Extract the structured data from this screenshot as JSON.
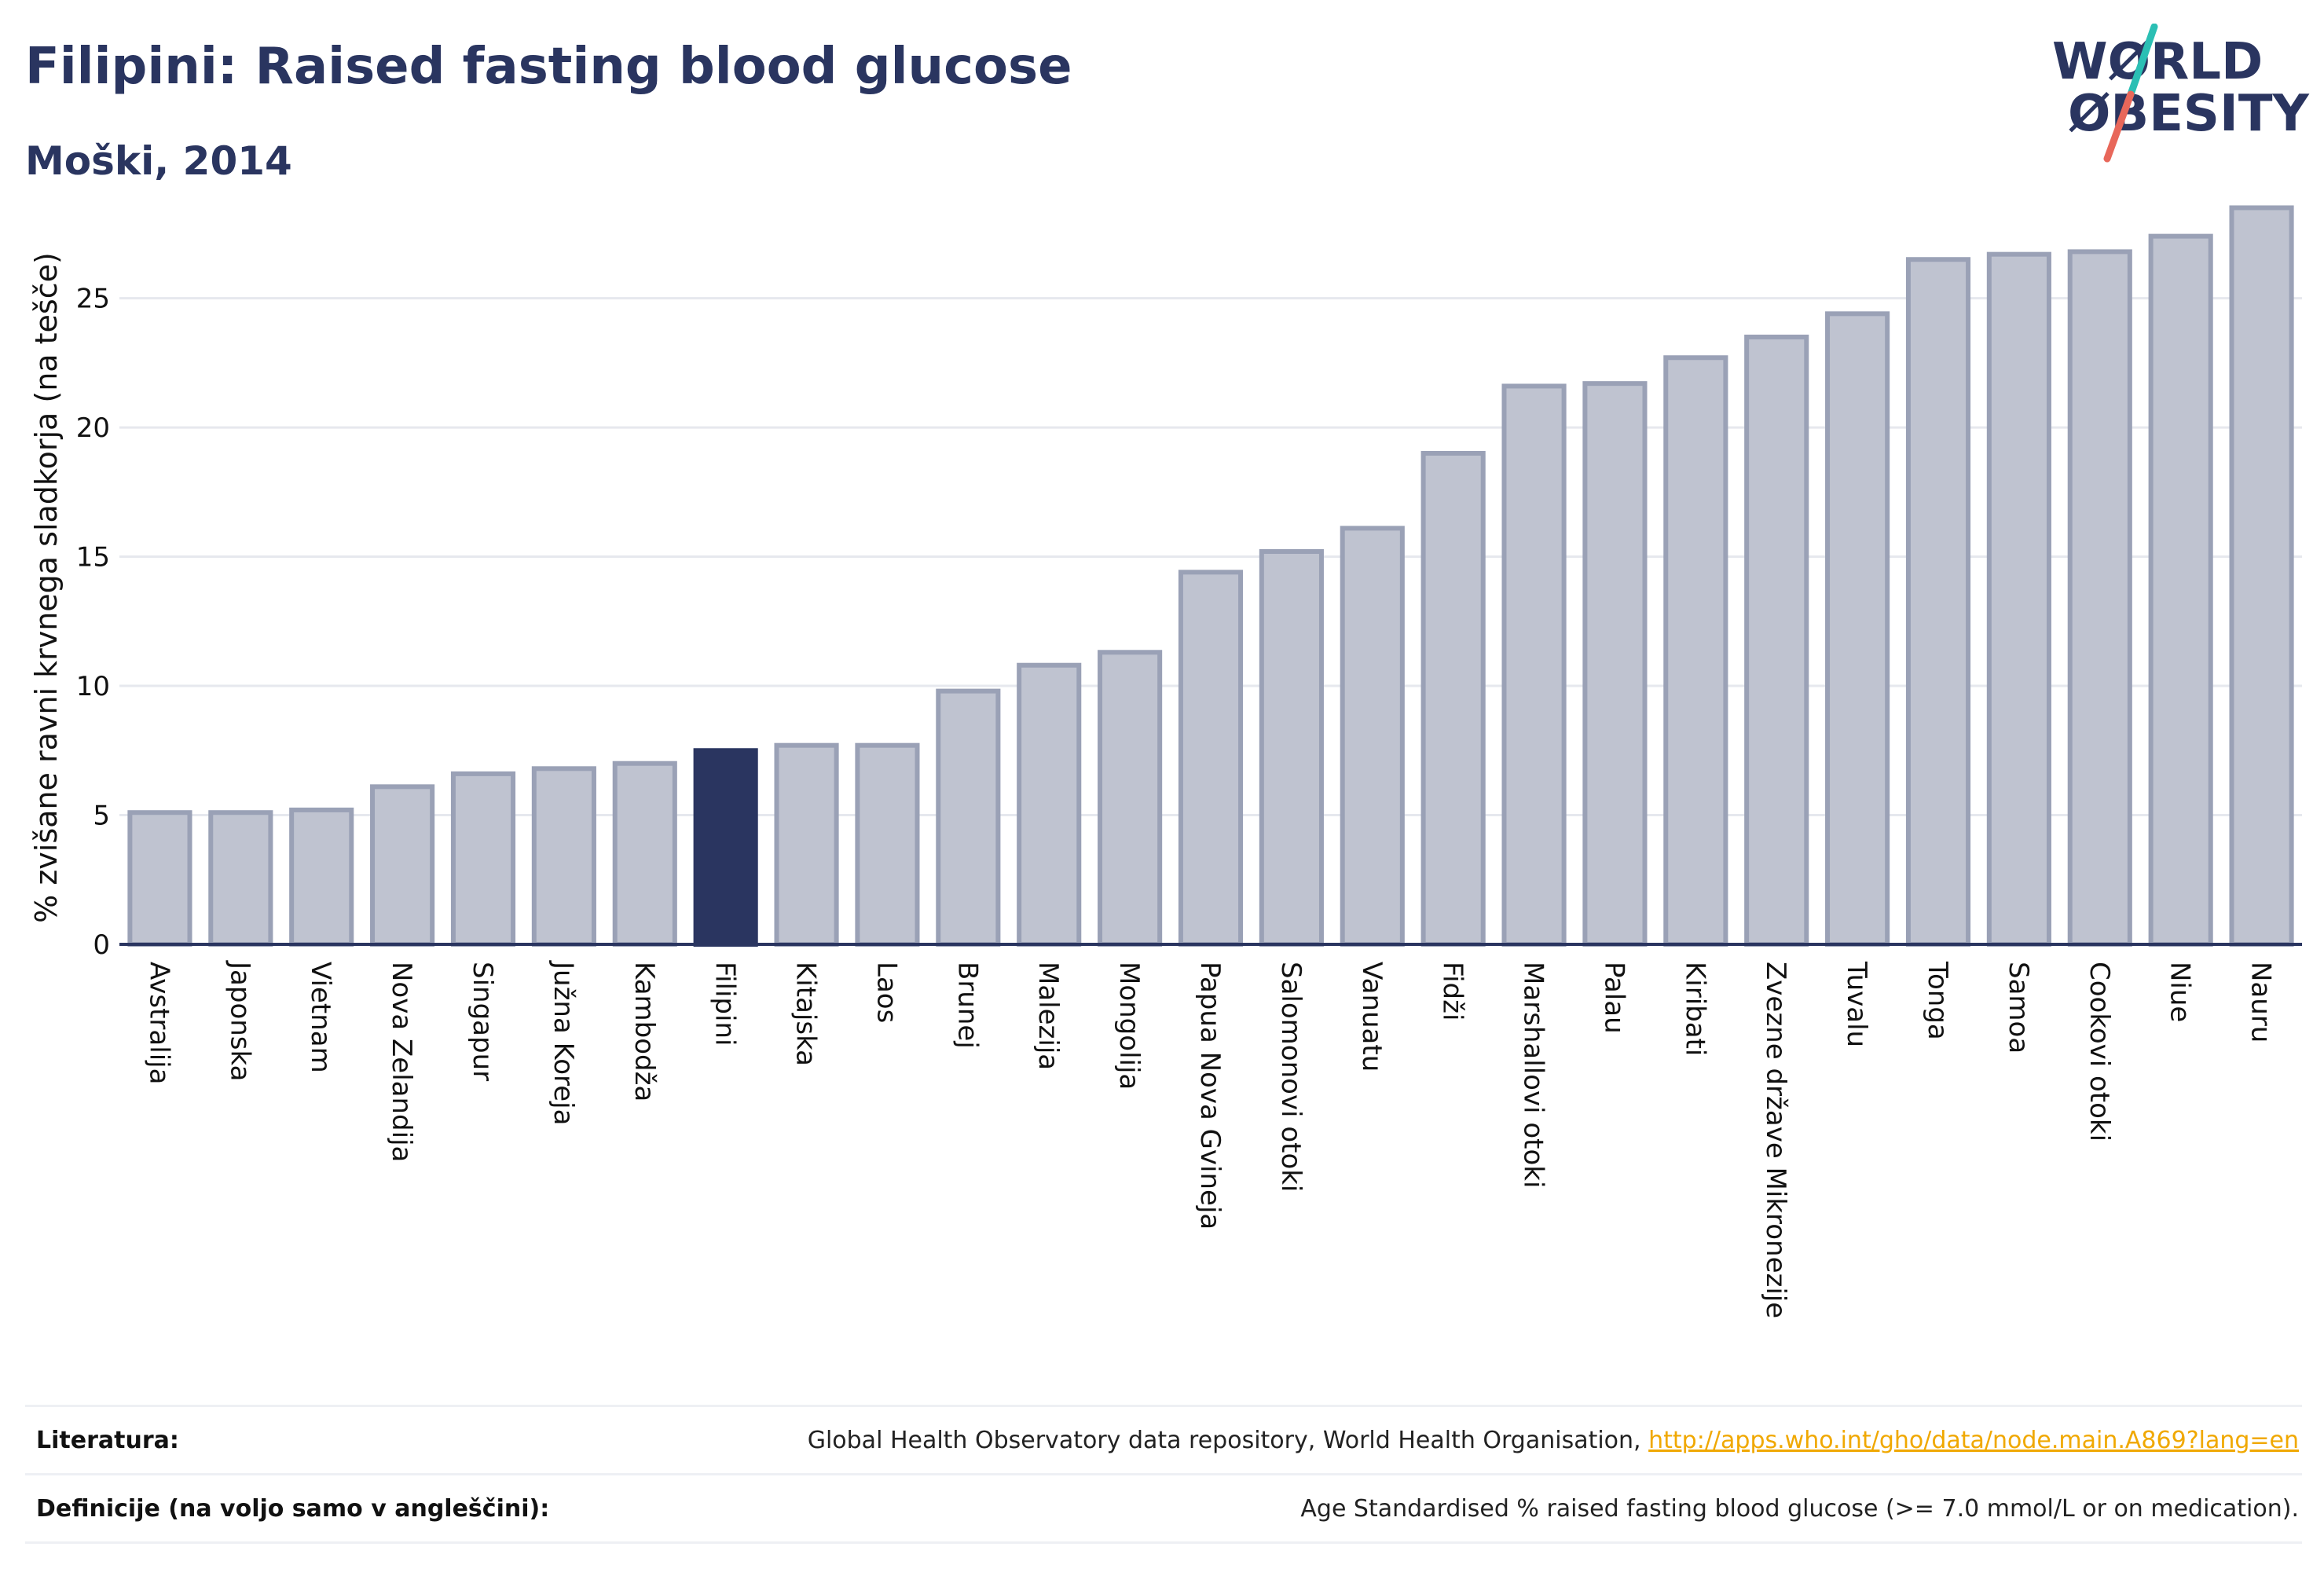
{
  "header": {
    "title": "Filipini: Raised fasting blood glucose",
    "subtitle": "Moški, 2014"
  },
  "logo": {
    "line1": "WØRLD",
    "line2": "ØBESITY",
    "colors": {
      "text": "#2a3560",
      "slash_top": "#2bbfb4",
      "slash_bottom": "#e8675a"
    }
  },
  "chart_data": {
    "type": "bar",
    "ylabel": "% zvišane ravni krvnega sladkorja (na tešče)",
    "ylim": [
      0,
      29
    ],
    "yticks": [
      0,
      5,
      10,
      15,
      20,
      25
    ],
    "grid": true,
    "categories": [
      "Avstralija",
      "Japonska",
      "Vietnam",
      "Nova Zelandija",
      "Singapur",
      "Južna Koreja",
      "Kambodža",
      "Filipini",
      "Kitajska",
      "Laos",
      "Brunej",
      "Malezija",
      "Mongolija",
      "Papua Nova Gvineja",
      "Salomonovi otoki",
      "Vanuatu",
      "Fidži",
      "Marshallovi otoki",
      "Palau",
      "Kiribati",
      "Zvezne države Mikronezije",
      "Tuvalu",
      "Tonga",
      "Samoa",
      "Cookovi otoki",
      "Niue",
      "Nauru"
    ],
    "values": [
      5.1,
      5.1,
      5.2,
      6.1,
      6.6,
      6.8,
      7.0,
      7.5,
      7.7,
      7.7,
      9.8,
      10.8,
      11.3,
      14.4,
      15.2,
      16.1,
      19.0,
      21.6,
      21.7,
      22.7,
      23.5,
      24.4,
      26.5,
      26.7,
      26.8,
      27.4,
      28.5
    ],
    "highlight": "Filipini",
    "colors": {
      "bar": "#bfc3d0",
      "bar_edge": "#9aa1b6",
      "highlight": "#2a3560",
      "grid": "#e6e8ee",
      "axis": "#2a3560"
    }
  },
  "footer": {
    "literature_label": "Literatura:",
    "literature_text": "Global Health Observatory data repository, World Health Organisation,",
    "literature_link": "http://apps.who.int/gho/data/node.main.A869?lang=en",
    "definitions_label": "Definicije (na voljo samo v angleščini):",
    "definitions_text": "Age Standardised % raised fasting blood glucose (>= 7.0 mmol/L or on medication)."
  }
}
